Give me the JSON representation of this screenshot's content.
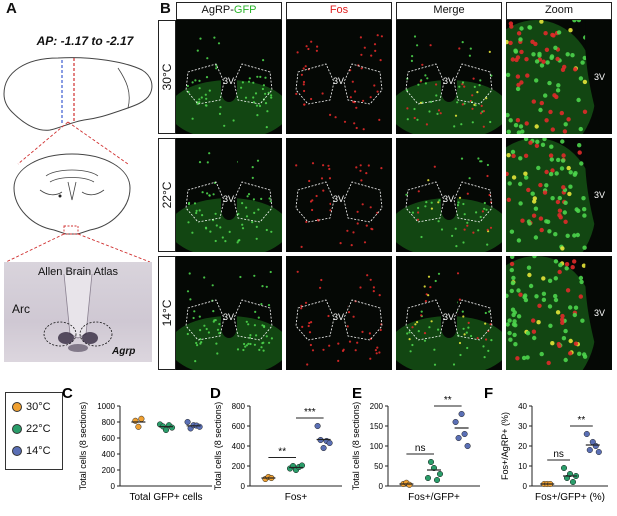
{
  "panel_a": {
    "label": "A",
    "ap_text": "AP: -1.17 to -2.17",
    "atlas_title": "Allen Brain Atlas",
    "arc_label": "Arc",
    "gene_label": "Agrp"
  },
  "panel_b": {
    "label": "B",
    "columns": [
      {
        "parts": [
          "AgRP-",
          "GFP"
        ],
        "colors": [
          "#111111",
          "#2bb52b"
        ]
      },
      {
        "parts": [
          "Fos",
          ""
        ],
        "colors": [
          "#e02020",
          "#e02020"
        ]
      },
      {
        "parts": [
          "Merge",
          ""
        ],
        "colors": [
          "#111111",
          "#111111"
        ]
      },
      {
        "parts": [
          "Zoom",
          ""
        ],
        "colors": [
          "#111111",
          "#111111"
        ]
      }
    ],
    "rows": [
      "30°C",
      "22°C",
      "14°C"
    ],
    "ventricle_label": "3V"
  },
  "legend": {
    "items": [
      {
        "label": "30°C",
        "color": "#f0a030"
      },
      {
        "label": "22°C",
        "color": "#2a9d6a"
      },
      {
        "label": "14°C",
        "color": "#5a6fb5"
      }
    ]
  },
  "chart_data": [
    {
      "panel": "C",
      "type": "scatter",
      "ylabel": "Total cells (8 sections)",
      "xlabel": "Total GFP+ cells",
      "ylim": [
        0,
        1000
      ],
      "yticks": [
        0,
        200,
        400,
        600,
        800,
        1000
      ],
      "groups": [
        {
          "name": "30°C",
          "values": [
            815,
            740,
            840
          ]
        },
        {
          "name": "22°C",
          "values": [
            770,
            745,
            700,
            760,
            730
          ]
        },
        {
          "name": "14°C",
          "values": [
            800,
            720,
            760,
            755,
            740
          ]
        }
      ],
      "means": [
        800,
        742,
        752
      ],
      "annotations": []
    },
    {
      "panel": "D",
      "type": "scatter",
      "ylabel": "Total cells (8 sections)",
      "xlabel": "Fos+",
      "ylim": [
        0,
        800
      ],
      "yticks": [
        0,
        200,
        400,
        600,
        800
      ],
      "groups": [
        {
          "name": "30°C",
          "values": [
            70,
            90,
            80
          ]
        },
        {
          "name": "22°C",
          "values": [
            175,
            200,
            160,
            190,
            205
          ]
        },
        {
          "name": "14°C",
          "values": [
            600,
            460,
            380,
            450,
            430
          ]
        }
      ],
      "means": [
        80,
        185,
        465
      ],
      "annotations": [
        {
          "from": 0,
          "to": 1,
          "text": "**"
        },
        {
          "from": 1,
          "to": 2,
          "text": "***"
        }
      ]
    },
    {
      "panel": "E",
      "type": "scatter",
      "ylabel": "Total cells (8 sections)",
      "xlabel": "Fos+/GFP+",
      "ylim": [
        0,
        200
      ],
      "yticks": [
        0,
        50,
        100,
        150,
        200
      ],
      "groups": [
        {
          "name": "30°C",
          "values": [
            5,
            8,
            3
          ]
        },
        {
          "name": "22°C",
          "values": [
            20,
            60,
            45,
            15,
            30
          ]
        },
        {
          "name": "14°C",
          "values": [
            160,
            120,
            180,
            130,
            100
          ]
        }
      ],
      "means": [
        5,
        40,
        145
      ],
      "annotations": [
        {
          "from": 0,
          "to": 1,
          "text": "ns"
        },
        {
          "from": 1,
          "to": 2,
          "text": "**"
        }
      ]
    },
    {
      "panel": "F",
      "type": "scatter",
      "ylabel": "Fos+/AgRP+ (%)",
      "xlabel": "Fos+/GFP+ (%)",
      "ylim": [
        0,
        40
      ],
      "yticks": [
        0,
        10,
        20,
        30,
        40
      ],
      "groups": [
        {
          "name": "30°C",
          "values": [
            1,
            1,
            1
          ]
        },
        {
          "name": "22°C",
          "values": [
            9,
            4,
            6,
            2,
            5
          ]
        },
        {
          "name": "14°C",
          "values": [
            26,
            18,
            22,
            20,
            17
          ]
        }
      ],
      "means": [
        1,
        5,
        20.5
      ],
      "annotations": [
        {
          "from": 0,
          "to": 1,
          "text": "ns"
        },
        {
          "from": 1,
          "to": 2,
          "text": "**"
        }
      ]
    }
  ]
}
